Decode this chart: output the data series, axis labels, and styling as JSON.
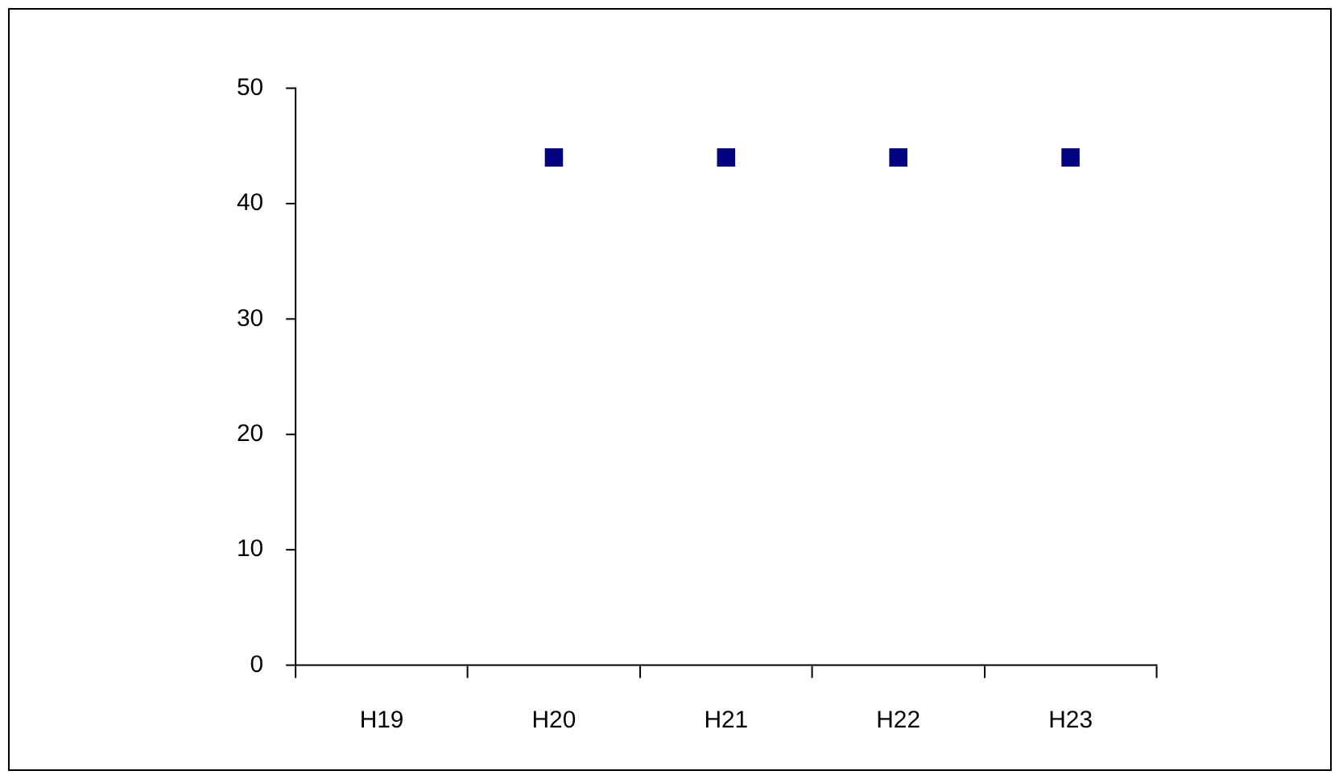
{
  "chart_data": {
    "type": "scatter",
    "categories": [
      "H19",
      "H20",
      "H21",
      "H22",
      "H23"
    ],
    "values": [
      null,
      44,
      44,
      44,
      44
    ],
    "color": "#000080",
    "marker": "square",
    "ylim": [
      0,
      50
    ],
    "yticks": [
      0,
      10,
      20,
      30,
      40,
      50
    ],
    "grid": false,
    "legend": false
  }
}
